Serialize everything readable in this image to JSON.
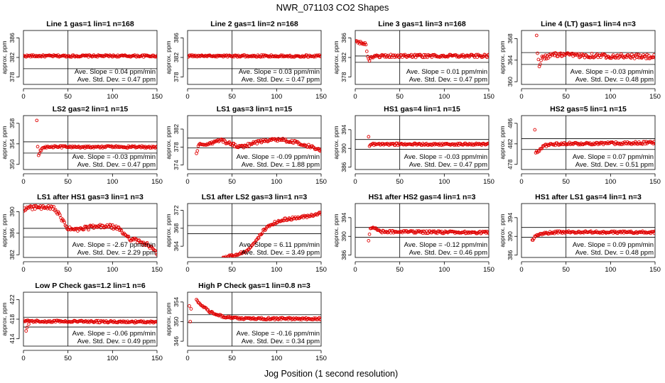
{
  "figure_title": "NWR_071103  CO2 Shapes",
  "x_axis_label": "Jog Position (1 second resolution)",
  "colors": {
    "points": "#e00000",
    "lines": "#000000",
    "background": "#ffffff"
  },
  "chart_data": [
    {
      "type": "scatter",
      "title": "Line 1 gas=1 lin=1 n=168",
      "ylabel": "approx. ppm",
      "xlim": [
        0,
        150
      ],
      "xticks": [
        0,
        50,
        100,
        150
      ],
      "ylim": [
        376.5,
        387.5
      ],
      "yticks": [
        378,
        382,
        386
      ],
      "hline_values": [
        382.3,
        379.7
      ],
      "vline_x": 50,
      "stat_slope": "Ave. Slope =  0.04  ppm/min",
      "stat_sd": "Ave. Std. Dev. =  0.47  ppm",
      "series": [
        {
          "profile": [
            [
              0,
              382.3
            ],
            [
              150,
              382.3
            ]
          ],
          "noise": 0.2,
          "x_start": 0
        }
      ]
    },
    {
      "type": "scatter",
      "title": "Line 2 gas=1 lin=2 n=168",
      "ylabel": "approx. ppm",
      "xlim": [
        0,
        150
      ],
      "xticks": [
        0,
        50,
        100,
        150
      ],
      "ylim": [
        376.5,
        387.5
      ],
      "yticks": [
        378,
        382,
        386
      ],
      "hline_values": [
        382.3,
        379.7
      ],
      "vline_x": 50,
      "stat_slope": "Ave. Slope =  0.03  ppm/min",
      "stat_sd": "Ave. Std. Dev. =  0.47  ppm",
      "series": [
        {
          "profile": [
            [
              0,
              382.3
            ],
            [
              150,
              382.3
            ]
          ],
          "noise": 0.2,
          "x_start": 0
        }
      ]
    },
    {
      "type": "scatter",
      "title": "Line 3 gas=1 lin=3 n=168",
      "ylabel": "approx. ppm",
      "xlim": [
        0,
        150
      ],
      "xticks": [
        0,
        50,
        100,
        150
      ],
      "ylim": [
        376.5,
        387.5
      ],
      "yticks": [
        378,
        382,
        386
      ],
      "hline_values": [
        382.3,
        381.0
      ],
      "vline_x": 50,
      "stat_slope": "Ave. Slope =  0.01  ppm/min",
      "stat_sd": "Ave. Std. Dev. =  0.47  ppm",
      "series": [
        {
          "profile": [
            [
              0,
              385.4
            ],
            [
              7,
              385.0
            ],
            [
              12,
              384.6
            ],
            [
              15,
              381.4
            ],
            [
              18,
              382.0
            ],
            [
              30,
              382.3
            ],
            [
              150,
              382.3
            ]
          ],
          "noise": 0.3,
          "x_start": 0
        }
      ]
    },
    {
      "type": "scatter",
      "title": "Line 4 (LT) gas=1 lin=4 n=3",
      "ylabel": "approx. ppm",
      "xlim": [
        0,
        150
      ],
      "xticks": [
        0,
        50,
        100,
        150
      ],
      "ylim": [
        359.5,
        369.5
      ],
      "yticks": [
        360,
        364,
        368
      ],
      "hline_values": [
        365.4,
        363.2
      ],
      "vline_x": 50,
      "stat_slope": "Ave. Slope =  -0.03  ppm/min",
      "stat_sd": "Ave. Std. Dev. =  0.48  ppm",
      "series": [
        {
          "profile": [
            [
              17,
              368.5
            ],
            [
              18,
              365.6
            ],
            [
              20,
              362.5
            ],
            [
              23,
              364.4
            ],
            [
              35,
              365.0
            ],
            [
              150,
              364.6
            ]
          ],
          "noise": 0.4,
          "x_start": 17
        }
      ]
    },
    {
      "type": "scatter",
      "title": "LS2 gas=2 lin=1 n=15",
      "ylabel": "approx. ppm",
      "xlim": [
        0,
        150
      ],
      "xticks": [
        0,
        50,
        100,
        150
      ],
      "ylim": [
        349,
        359.5
      ],
      "yticks": [
        350,
        354,
        358
      ],
      "hline_values": [
        354.4,
        352.2
      ],
      "vline_x": 50,
      "stat_slope": "Ave. Slope =  -0.03  ppm/min",
      "stat_sd": "Ave. Std. Dev. =  0.47  ppm",
      "series": [
        {
          "profile": [
            [
              15,
              358.4
            ],
            [
              16,
              353.4
            ],
            [
              17,
              351.8
            ],
            [
              19,
              352.6
            ],
            [
              22,
              353.4
            ],
            [
              150,
              353.4
            ]
          ],
          "noise": 0.2,
          "x_start": 15
        }
      ]
    },
    {
      "type": "scatter",
      "title": "LS1 gas=3 lin=1 n=15",
      "ylabel": "approx. ppm",
      "xlim": [
        0,
        150
      ],
      "xticks": [
        0,
        50,
        100,
        150
      ],
      "ylim": [
        373,
        385
      ],
      "yticks": [
        374,
        378,
        382
      ],
      "hline_values": [
        380.0,
        377.8
      ],
      "vline_x": 50,
      "stat_slope": "Ave. Slope =  -0.09  ppm/min",
      "stat_sd": "Ave. Std. Dev. =  1.88  ppm",
      "series": [
        {
          "profile": [
            [
              10,
              376.8
            ],
            [
              13,
              378.6
            ],
            [
              25,
              378.7
            ],
            [
              37,
              379.5
            ],
            [
              50,
              378.6
            ],
            [
              60,
              378.0
            ],
            [
              75,
              378.9
            ],
            [
              95,
              379.8
            ],
            [
              110,
              379.5
            ],
            [
              125,
              378.9
            ],
            [
              140,
              378.0
            ],
            [
              150,
              377.4
            ]
          ],
          "noise": 0.35,
          "x_start": 10
        }
      ]
    },
    {
      "type": "scatter",
      "title": "HS1 gas=4 lin=1 n=15",
      "ylabel": "approx. ppm",
      "xlim": [
        0,
        150
      ],
      "xticks": [
        0,
        50,
        100,
        150
      ],
      "ylim": [
        385.5,
        397
      ],
      "yticks": [
        386,
        390,
        394
      ],
      "hline_values": [
        391.9,
        389.8
      ],
      "vline_x": 50,
      "stat_slope": "Ave. Slope =  -0.03  ppm/min",
      "stat_sd": "Ave. Std. Dev. =  0.47  ppm",
      "series": [
        {
          "profile": [
            [
              15,
              392.5
            ],
            [
              16,
              390.4
            ],
            [
              18,
              390.9
            ],
            [
              150,
              390.9
            ]
          ],
          "noise": 0.2,
          "x_start": 15
        }
      ]
    },
    {
      "type": "scatter",
      "title": "HS2 gas=5 lin=1 n=15",
      "ylabel": "approx. ppm",
      "xlim": [
        0,
        150
      ],
      "xticks": [
        0,
        50,
        100,
        150
      ],
      "ylim": [
        477,
        487.5
      ],
      "yticks": [
        478,
        482,
        486
      ],
      "hline_values": [
        483.0,
        480.9
      ],
      "vline_x": 50,
      "stat_slope": "Ave. Slope =  0.07  ppm/min",
      "stat_sd": "Ave. Std. Dev. =  0.51  ppm",
      "series": [
        {
          "profile": [
            [
              15,
              484.6
            ],
            [
              16,
              480.4
            ],
            [
              20,
              480.6
            ],
            [
              25,
              481.6
            ],
            [
              40,
              482.0
            ],
            [
              150,
              482.2
            ]
          ],
          "noise": 0.25,
          "x_start": 15
        }
      ]
    },
    {
      "type": "scatter",
      "title": "LS1 after HS1 gas=3 lin=1 n=3",
      "ylabel": "approx. ppm",
      "xlim": [
        0,
        150
      ],
      "xticks": [
        0,
        50,
        100,
        150
      ],
      "ylim": [
        381.5,
        391.5
      ],
      "yticks": [
        382,
        386,
        390
      ],
      "hline_values": [
        386.9,
        385.3
      ],
      "vline_x": 50,
      "stat_slope": "Ave. Slope =  -2.67  ppm/min",
      "stat_sd": "Ave. Std. Dev. =  2.29  ppm",
      "series": [
        {
          "profile": [
            [
              0,
              390.4
            ],
            [
              10,
              390.8
            ],
            [
              25,
              390.7
            ],
            [
              35,
              390.6
            ],
            [
              50,
              386.8
            ],
            [
              60,
              386.6
            ],
            [
              75,
              387.1
            ],
            [
              95,
              387.3
            ],
            [
              105,
              387.0
            ],
            [
              120,
              385.0
            ],
            [
              140,
              383.8
            ],
            [
              150,
              382.2
            ]
          ],
          "noise": 0.4,
          "x_start": 0
        }
      ]
    },
    {
      "type": "scatter",
      "title": "LS1 after LS2 gas=3 lin=1 n=3",
      "ylabel": "approx. ppm",
      "xlim": [
        0,
        150
      ],
      "xticks": [
        0,
        50,
        100,
        150
      ],
      "ylim": [
        361.5,
        373.5
      ],
      "yticks": [
        364,
        368,
        372
      ],
      "hline_values": [
        368.6,
        366.8
      ],
      "vline_x": 50,
      "stat_slope": "Ave. Slope =  6.11  ppm/min",
      "stat_sd": "Ave. Std. Dev. =  3.49  ppm",
      "series": [
        {
          "profile": [
            [
              40,
              361.6
            ],
            [
              55,
              362.0
            ],
            [
              65,
              362.8
            ],
            [
              75,
              364.6
            ],
            [
              85,
              367.4
            ],
            [
              95,
              369.0
            ],
            [
              110,
              370.0
            ],
            [
              130,
              370.5
            ],
            [
              150,
              371.4
            ]
          ],
          "noise": 0.3,
          "x_start": 40
        }
      ]
    },
    {
      "type": "scatter",
      "title": "HS1 after HS2 gas=4 lin=1 n=3",
      "ylabel": "approx. ppm",
      "xlim": [
        0,
        150
      ],
      "xticks": [
        0,
        50,
        100,
        150
      ],
      "ylim": [
        385.5,
        397
      ],
      "yticks": [
        386,
        390,
        394
      ],
      "hline_values": [
        391.9,
        389.8
      ],
      "vline_x": 50,
      "stat_slope": "Ave. Slope =  -0.12  ppm/min",
      "stat_sd": "Ave. Std. Dev. =  0.46  ppm",
      "series": [
        {
          "profile": [
            [
              15,
              389.0
            ],
            [
              17,
              391.6
            ],
            [
              20,
              392.0
            ],
            [
              30,
              391.0
            ],
            [
              150,
              390.8
            ]
          ],
          "noise": 0.25,
          "x_start": 15
        }
      ]
    },
    {
      "type": "scatter",
      "title": "HS1 after LS1 gas=4 lin=1 n=3",
      "ylabel": "approx. ppm",
      "xlim": [
        0,
        150
      ],
      "xticks": [
        0,
        50,
        100,
        150
      ],
      "ylim": [
        385.5,
        397
      ],
      "yticks": [
        386,
        390,
        394
      ],
      "hline_values": [
        391.9,
        389.8
      ],
      "vline_x": 50,
      "stat_slope": "Ave. Slope =  0.09  ppm/min",
      "stat_sd": "Ave. Std. Dev. =  0.48  ppm",
      "series": [
        {
          "profile": [
            [
              12,
              389.0
            ],
            [
              16,
              390.2
            ],
            [
              25,
              390.6
            ],
            [
              40,
              390.9
            ],
            [
              150,
              390.9
            ]
          ],
          "noise": 0.25,
          "x_start": 12
        }
      ]
    },
    {
      "type": "scatter",
      "title": "Low P Check gas=1.2 lin=1 n=6",
      "ylabel": "approx. ppm",
      "xlim": [
        0,
        150
      ],
      "xticks": [
        0,
        50,
        100,
        150
      ],
      "ylim": [
        412.5,
        423.5
      ],
      "yticks": [
        414,
        418,
        422
      ],
      "hline_values": [
        418.4,
        416.4
      ],
      "vline_x": 50,
      "stat_slope": "Ave. Slope =  -0.06  ppm/min",
      "stat_sd": "Ave. Std. Dev. =  0.49  ppm",
      "series": [
        {
          "profile": [
            [
              0,
              417.6
            ],
            [
              150,
              417.4
            ]
          ],
          "noise": 0.2,
          "x_start": 0,
          "outliers": [
            [
              3,
              415.6
            ],
            [
              4,
              416.3
            ],
            [
              6,
              417.0
            ]
          ]
        }
      ]
    },
    {
      "type": "scatter",
      "title": "High P Check gas=1 lin=0.8 n=3",
      "ylabel": "approx. ppm",
      "xlim": [
        0,
        150
      ],
      "xticks": [
        0,
        50,
        100,
        150
      ],
      "ylim": [
        345,
        356
      ],
      "yticks": [
        346,
        350,
        354
      ],
      "hline_values": [
        351.4,
        349.8
      ],
      "vline_x": 50,
      "stat_slope": "Ave. Slope =  -0.16  ppm/min",
      "stat_sd": "Ave. Std. Dev. =  0.34  ppm",
      "series": [
        {
          "profile": [
            [
              10,
              354.5
            ],
            [
              15,
              353.4
            ],
            [
              25,
              352.0
            ],
            [
              40,
              351.0
            ],
            [
              60,
              350.6
            ],
            [
              150,
              350.6
            ]
          ],
          "noise": 0.2,
          "x_start": 10,
          "outliers": [
            [
              2,
              353.2
            ],
            [
              3,
              350.0
            ],
            [
              4,
              352.6
            ]
          ]
        }
      ]
    }
  ]
}
